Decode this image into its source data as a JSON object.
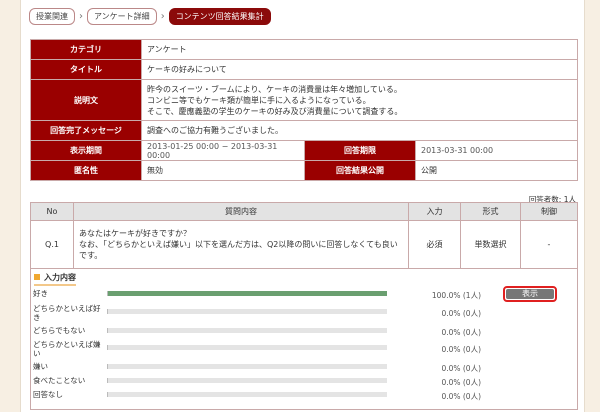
{
  "breadcrumb": [
    "授業関連",
    "アンケート詳細",
    "コンテンツ回答結果集計"
  ],
  "info": {
    "category_label": "カテゴリ",
    "category": "アンケート",
    "title_label": "タイトル",
    "title": "ケーキの好みについて",
    "desc_label": "説明文",
    "desc": [
      "昨今のスイーツ・ブームにより、ケーキの消費量は年々増加している。",
      "コンビニ等でもケーキ類が簡単に手に入るようになっている。",
      "そこで、慶應義塾の学生のケーキの好み及び消費量について調査する。"
    ],
    "msg_label": "回答完了メッセージ",
    "msg": "調査へのご協力有難うございました。",
    "period_label": "表示期間",
    "period": "2013-01-25 00:00 − 2013-03-31 00:00",
    "deadline_label": "回答期限",
    "deadline": "2013-03-31 00:00",
    "anon_label": "匿名性",
    "anon": "無効",
    "publish_label": "回答結果公開",
    "publish": "公開"
  },
  "respondents": "回答者数: 1人",
  "questions": {
    "headers": [
      "No",
      "質問内容",
      "入力",
      "形式",
      "制御"
    ],
    "rows": [
      {
        "no": "Q.1",
        "text": [
          "あなたはケーキが好きですか？",
          "なお、「どちらかといえば嫌い」以下を選んだ方は、Q2以降の問いに回答しなくても良いです。"
        ],
        "input": "必須",
        "format": "単数選択",
        "control": "-"
      }
    ]
  },
  "answers": {
    "title": "入力内容",
    "show_button": "表示",
    "bar_color": "#6a9f70",
    "options": [
      {
        "label": "好き",
        "percent": 100,
        "text": "100.0% (1人)"
      },
      {
        "label": "どちらかといえば好き",
        "percent": 0,
        "text": "0.0% (0人)"
      },
      {
        "label": "どちらでもない",
        "percent": 0,
        "text": "0.0% (0人)"
      },
      {
        "label": "どちらかといえば嫌い",
        "percent": 0,
        "text": "0.0% (0人)"
      },
      {
        "label": "嫌い",
        "percent": 0,
        "text": "0.0% (0人)"
      },
      {
        "label": "食べたことない",
        "percent": 0,
        "text": "0.0% (0人)"
      },
      {
        "label": "回答なし",
        "percent": 0,
        "text": "0.0% (0人)"
      }
    ]
  }
}
